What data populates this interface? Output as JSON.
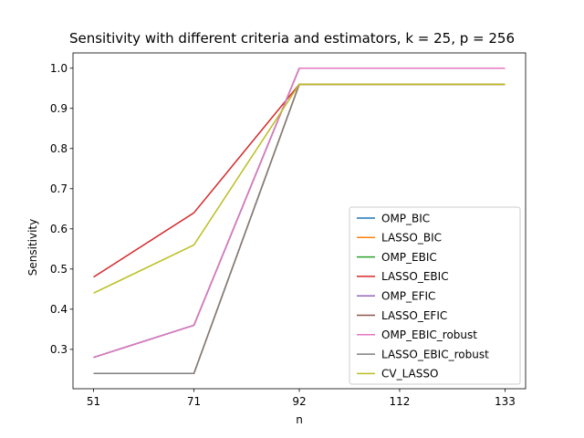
{
  "chart_data": {
    "type": "line",
    "title": "Sensitivity with different criteria and estimators, k = 25, p = 256",
    "xlabel": "n",
    "ylabel": "Sensitivity",
    "x": [
      51,
      71,
      92,
      112,
      133
    ],
    "xticks": [
      "51",
      "71",
      "92",
      "112",
      "133"
    ],
    "yticks": [
      "0.3",
      "0.4",
      "0.5",
      "0.6",
      "0.7",
      "0.8",
      "0.9",
      "1.0"
    ],
    "xlim": [
      46.9,
      137.1
    ],
    "ylim": [
      0.202,
      1.038
    ],
    "grid": false,
    "legend_position": "lower right",
    "series": [
      {
        "name": "OMP_BIC",
        "color": "#1f77b4",
        "x": [
          51,
          71,
          92,
          133
        ],
        "values": [
          0.28,
          0.36,
          1.0,
          1.0
        ]
      },
      {
        "name": "LASSO_BIC",
        "color": "#ff7f0e",
        "x": [
          51,
          71,
          92,
          133
        ],
        "values": [
          0.24,
          0.24,
          0.96,
          0.96
        ]
      },
      {
        "name": "OMP_EBIC",
        "color": "#2ca02c",
        "x": [
          51,
          71,
          92,
          133
        ],
        "values": [
          0.28,
          0.36,
          1.0,
          1.0
        ]
      },
      {
        "name": "LASSO_EBIC",
        "color": "#d62728",
        "x": [
          51,
          71,
          92,
          133
        ],
        "values": [
          0.48,
          0.64,
          0.96,
          0.96
        ]
      },
      {
        "name": "OMP_EFIC",
        "color": "#9467bd",
        "x": [
          51,
          71,
          92,
          133
        ],
        "values": [
          0.28,
          0.36,
          1.0,
          1.0
        ]
      },
      {
        "name": "LASSO_EFIC",
        "color": "#8c564b",
        "x": [
          51,
          71,
          92,
          133
        ],
        "values": [
          0.24,
          0.24,
          0.96,
          0.96
        ]
      },
      {
        "name": "OMP_EBIC_robust",
        "color": "#e377c2",
        "x": [
          51,
          71,
          92,
          133
        ],
        "values": [
          0.28,
          0.36,
          1.0,
          1.0
        ]
      },
      {
        "name": "LASSO_EBIC_robust",
        "color": "#7f7f7f",
        "x": [
          51,
          71,
          92,
          133
        ],
        "values": [
          0.24,
          0.24,
          0.96,
          0.96
        ]
      },
      {
        "name": "CV_LASSO",
        "color": "#bcbd22",
        "x": [
          51,
          71,
          92,
          133
        ],
        "values": [
          0.44,
          0.56,
          0.96,
          0.96
        ]
      }
    ]
  }
}
